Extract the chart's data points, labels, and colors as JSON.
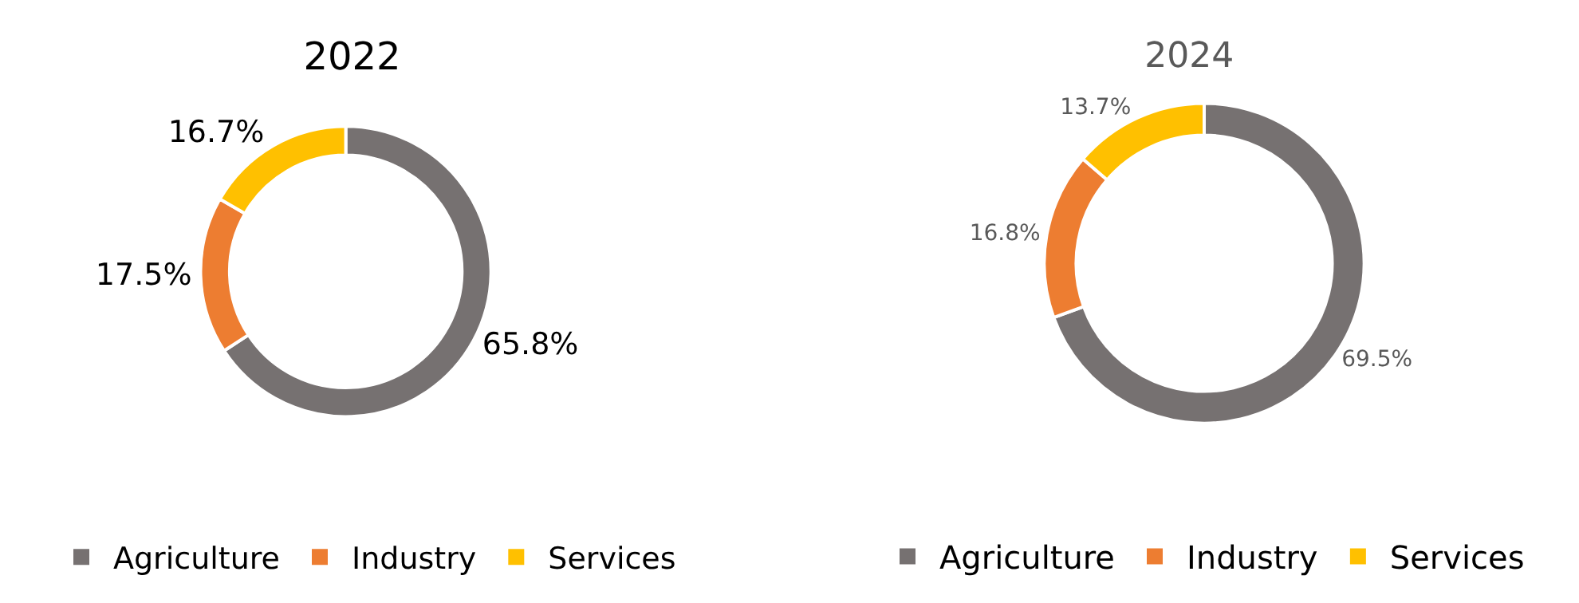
{
  "chart_data": [
    {
      "type": "donut",
      "title": "2022",
      "categories": [
        "Agriculture",
        "Industry",
        "Services"
      ],
      "values": [
        65.8,
        17.5,
        16.7
      ],
      "value_labels": [
        "65.8%",
        "17.5%",
        "16.7%"
      ],
      "colors": [
        "#767171",
        "#ed7d31",
        "#ffc000"
      ],
      "legend": "bottom"
    },
    {
      "type": "donut",
      "title": "2024",
      "categories": [
        "Agriculture",
        "Industry",
        "Services"
      ],
      "values": [
        69.5,
        16.8,
        13.7
      ],
      "value_labels": [
        "69.5%",
        "16.8%",
        "13.7%"
      ],
      "colors": [
        "#767171",
        "#ed7d31",
        "#ffc000"
      ],
      "legend": "bottom"
    }
  ]
}
